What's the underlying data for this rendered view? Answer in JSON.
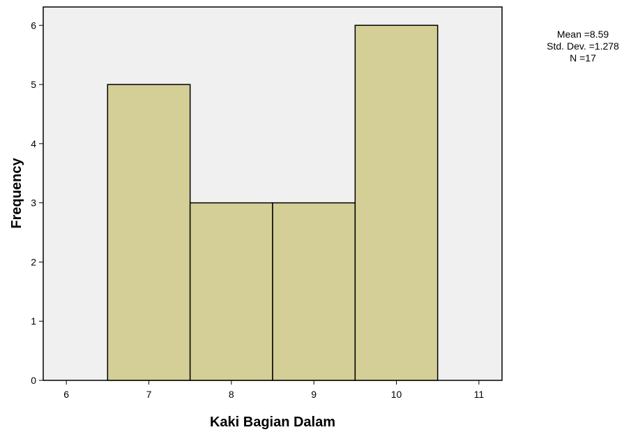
{
  "chart_data": {
    "type": "bar",
    "subtype": "histogram",
    "xlabel": "Kaki Bagian Dalam",
    "ylabel": "Frequency",
    "bins": [
      {
        "start": 6.5,
        "end": 7.5,
        "value": 5
      },
      {
        "start": 7.5,
        "end": 8.5,
        "value": 3
      },
      {
        "start": 8.5,
        "end": 9.5,
        "value": 3
      },
      {
        "start": 9.5,
        "end": 10.5,
        "value": 6
      }
    ],
    "xticks": [
      6,
      7,
      8,
      9,
      10,
      11
    ],
    "yticks": [
      0,
      1,
      2,
      3,
      4,
      5,
      6
    ],
    "xlim": [
      5.72,
      11.28
    ],
    "ylim": [
      0,
      6.31
    ],
    "grid": false,
    "legend": "none",
    "stats": {
      "mean_label": "Mean =8.59",
      "sd_label": "Std. Dev. =1.278",
      "n_label": "N =17"
    },
    "colors": {
      "bar_fill": "#d4cf96",
      "bar_stroke": "#000000",
      "plot_bg": "#f0f0f0"
    }
  }
}
